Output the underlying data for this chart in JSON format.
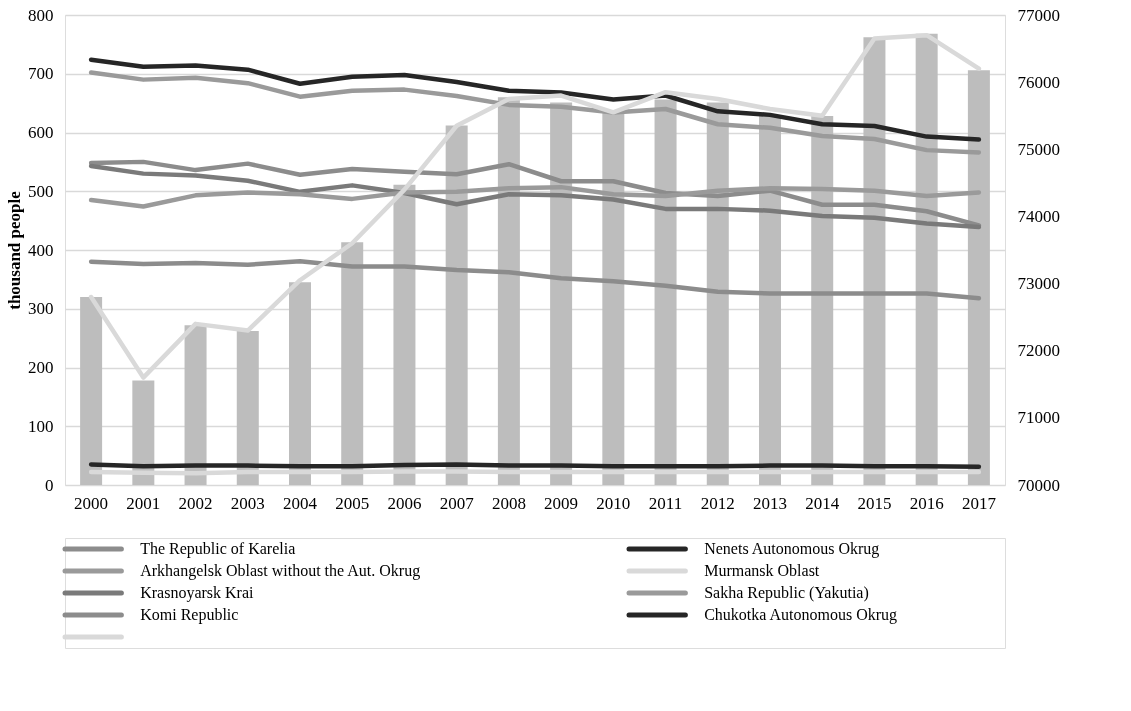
{
  "chart_data": {
    "type": "line",
    "ylabel": "thousand people",
    "categories": [
      "2000",
      "2001",
      "2002",
      "2003",
      "2004",
      "2005",
      "2006",
      "2007",
      "2008",
      "2009",
      "2010",
      "2011",
      "2012",
      "2013",
      "2014",
      "2015",
      "2016",
      "2017"
    ],
    "ylim": [
      0,
      800
    ],
    "yticks": [
      0,
      100,
      200,
      300,
      400,
      500,
      600,
      700,
      800
    ],
    "y2lim": [
      70000,
      77000
    ],
    "y2ticks": [
      70000,
      71000,
      72000,
      73000,
      74000,
      75000,
      76000,
      77000
    ],
    "grid": "y",
    "legend": "bottom",
    "series": [
      {
        "type": "bar",
        "color": "#bdbdbd",
        "values": [
          320,
          178,
          272,
          262,
          345,
          413,
          511,
          612,
          660,
          651,
          634,
          656,
          651,
          628,
          628,
          762,
          768,
          706
        ]
      },
      {
        "name": "The Republic of Karelia",
        "color": "#8c8c8c",
        "values": [
          548,
          550,
          536,
          547,
          528,
          538,
          533,
          529,
          546,
          517,
          517,
          497,
          492,
          501,
          477,
          477,
          466,
          442
        ]
      },
      {
        "name": "Arkhangelsk Oblast without the Aut. Okrug",
        "color": "#9a9a9a",
        "values": [
          702,
          690,
          693,
          684,
          661,
          671,
          673,
          662,
          647,
          644,
          634,
          640,
          614,
          608,
          594,
          589,
          570,
          566
        ]
      },
      {
        "name": "Krasnoyarsk Krai",
        "color": "#7a7a7a",
        "values": [
          543,
          530,
          527,
          518,
          499,
          510,
          497,
          478,
          495,
          493,
          486,
          470,
          470,
          467,
          458,
          455,
          445,
          439
        ]
      },
      {
        "name": "Komi Republic",
        "color": "#8c8c8c",
        "values": [
          380,
          376,
          378,
          375,
          381,
          372,
          372,
          366,
          362,
          352,
          347,
          339,
          329,
          326,
          326,
          326,
          326,
          318
        ]
      },
      {
        "color": "#d9d9d9",
        "axis": "y2",
        "values": [
          72800,
          71600,
          72400,
          72300,
          73050,
          73600,
          74400,
          75350,
          75750,
          75800,
          75550,
          75850,
          75750,
          75600,
          75500,
          76650,
          76700,
          76200
        ]
      },
      {
        "name": "Nenets Autonomous Okrug",
        "color": "#262626",
        "values": [
          724,
          712,
          714,
          707,
          683,
          695,
          698,
          686,
          671,
          668,
          656,
          663,
          636,
          630,
          614,
          611,
          593,
          588
        ]
      },
      {
        "name": "Murmansk Oblast",
        "color": "#d9d9d9",
        "values": [
          22,
          21,
          20,
          22,
          22,
          22,
          23,
          23,
          22,
          22,
          22,
          22,
          22,
          22,
          22,
          22,
          22,
          22
        ]
      },
      {
        "name": "Sakha Republic (Yakutia)",
        "color": "#9a9a9a",
        "values": [
          485,
          474,
          493,
          498,
          495,
          487,
          498,
          499,
          505,
          507,
          495,
          492,
          501,
          505,
          504,
          501,
          492,
          498
        ]
      },
      {
        "name": "Chukotka Autonomous Okrug",
        "color": "#262626",
        "values": [
          35,
          32,
          33,
          33,
          32,
          32,
          34,
          35,
          33,
          33,
          32,
          32,
          32,
          33,
          33,
          32,
          32,
          31
        ]
      }
    ]
  }
}
